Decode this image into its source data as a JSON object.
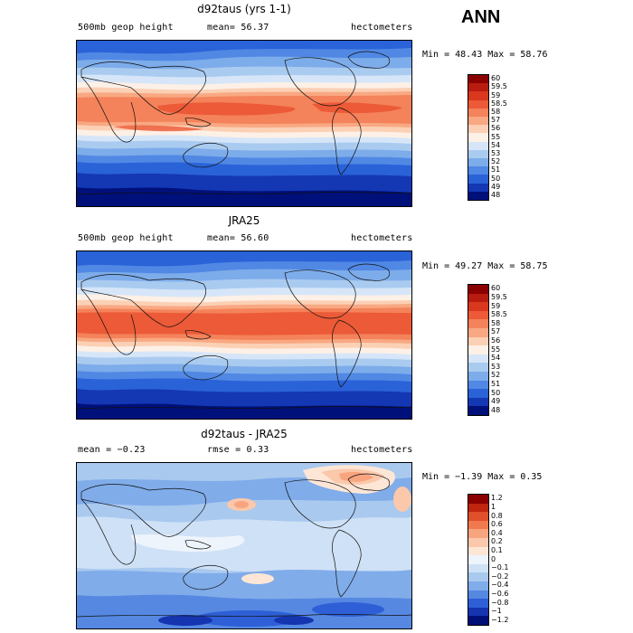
{
  "season": "ANN",
  "panels": [
    {
      "title": "d92taus (yrs 1-1)",
      "left_label": "500mb geop height",
      "center_label": "mean=  56.37",
      "right_label": "hectometers",
      "minmax": "Min =  48.43 Max =  58.76",
      "scale": "abs",
      "levels": [
        "60",
        "59.5",
        "59",
        "58.5",
        "58",
        "57",
        "56",
        "55",
        "54",
        "53",
        "52",
        "51",
        "50",
        "49",
        "48"
      ]
    },
    {
      "title": "JRA25",
      "left_label": "500mb geop height",
      "center_label": "mean=  56.60",
      "right_label": "hectometers",
      "minmax": "Min =  49.27 Max =  58.75",
      "scale": "abs",
      "levels": [
        "60",
        "59.5",
        "59",
        "58.5",
        "58",
        "57",
        "56",
        "55",
        "54",
        "53",
        "52",
        "51",
        "50",
        "49",
        "48"
      ]
    },
    {
      "title": "d92taus - JRA25",
      "left_label": "mean =  −0.23",
      "center_label": "rmse =   0.33",
      "right_label": "hectometers",
      "minmax": "Min =  −1.39 Max =   0.35",
      "scale": "diff",
      "levels": [
        "1.2",
        "1",
        "0.8",
        "0.6",
        "0.4",
        "0.2",
        "0.1",
        "0",
        "−0.1",
        "−0.2",
        "−0.4",
        "−0.6",
        "−0.8",
        "−1",
        "−1.2"
      ]
    }
  ],
  "colors": {
    "abs": [
      "#8b0000",
      "#b81c10",
      "#d9381e",
      "#ec5a37",
      "#f4825a",
      "#f8a882",
      "#fbd0b5",
      "#fdf0e6",
      "#d6e6f8",
      "#aacbf0",
      "#7dacea",
      "#5088e4",
      "#2a62d8",
      "#1437b4",
      "#00107a"
    ],
    "diff": [
      "#8b0000",
      "#c0250f",
      "#e0502a",
      "#f07a4e",
      "#f8a47e",
      "#fbc8ab",
      "#fde6d6",
      "#eef4fc",
      "#cfe1f6",
      "#a9c9ef",
      "#80acea",
      "#5688e2",
      "#2e5fd6",
      "#1534b0",
      "#000e78"
    ]
  }
}
